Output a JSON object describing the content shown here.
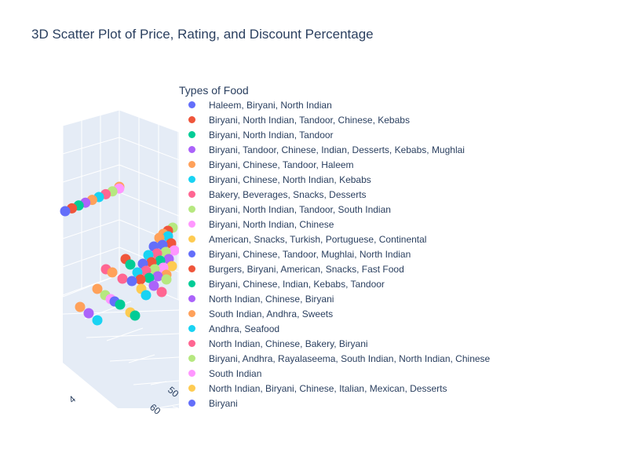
{
  "chart_data": {
    "type": "scatter3d",
    "title": "3D Scatter Plot of Price, Rating, and Discount Percentage",
    "legend_title": "Types of Food",
    "legend_position": "right",
    "axes": {
      "x_label": "",
      "y_label": "",
      "z_label": ""
    },
    "visible_tick_labels": [
      "4",
      "50",
      "60"
    ],
    "series": [
      {
        "name": "Haleem, Biryani, North Indian",
        "color": "#636efa"
      },
      {
        "name": "Biryani, North Indian, Tandoor, Chinese, Kebabs",
        "color": "#EF553B"
      },
      {
        "name": "Biryani, North Indian, Tandoor",
        "color": "#00cc96"
      },
      {
        "name": "Biryani, Tandoor, Chinese, Indian, Desserts, Kebabs, Mughlai",
        "color": "#ab63fa"
      },
      {
        "name": "Biryani, Chinese, Tandoor, Haleem",
        "color": "#FFA15A"
      },
      {
        "name": "Biryani, Chinese, North Indian, Kebabs",
        "color": "#19d3f3"
      },
      {
        "name": "Bakery, Beverages, Snacks, Desserts",
        "color": "#FF6692"
      },
      {
        "name": "Biryani, North Indian, Tandoor, South Indian",
        "color": "#B6E880"
      },
      {
        "name": "Biryani, North Indian, Chinese",
        "color": "#FF97FF"
      },
      {
        "name": "American, Snacks, Turkish, Portuguese, Continental",
        "color": "#FECB52"
      },
      {
        "name": "Biryani, Chinese, Tandoor, Mughlai, North Indian",
        "color": "#636efa"
      },
      {
        "name": "Burgers, Biryani, American, Snacks, Fast Food",
        "color": "#EF553B"
      },
      {
        "name": "Biryani, Chinese, Indian, Kebabs, Tandoor",
        "color": "#00cc96"
      },
      {
        "name": "North Indian, Chinese, Biryani",
        "color": "#ab63fa"
      },
      {
        "name": "South Indian, Andhra, Sweets",
        "color": "#FFA15A"
      },
      {
        "name": "Andhra, Seafood",
        "color": "#19d3f3"
      },
      {
        "name": "North Indian, Chinese, Bakery, Biryani",
        "color": "#FF6692"
      },
      {
        "name": "Biryani, Andhra, Rayalaseema, South Indian, North Indian, Chinese",
        "color": "#B6E880"
      },
      {
        "name": "South Indian",
        "color": "#FF97FF"
      },
      {
        "name": "North Indian, Biryani, Chinese, Italian, Mexican, Desserts",
        "color": "#FECB52"
      },
      {
        "name": "Biryani",
        "color": "#636efa"
      }
    ]
  }
}
